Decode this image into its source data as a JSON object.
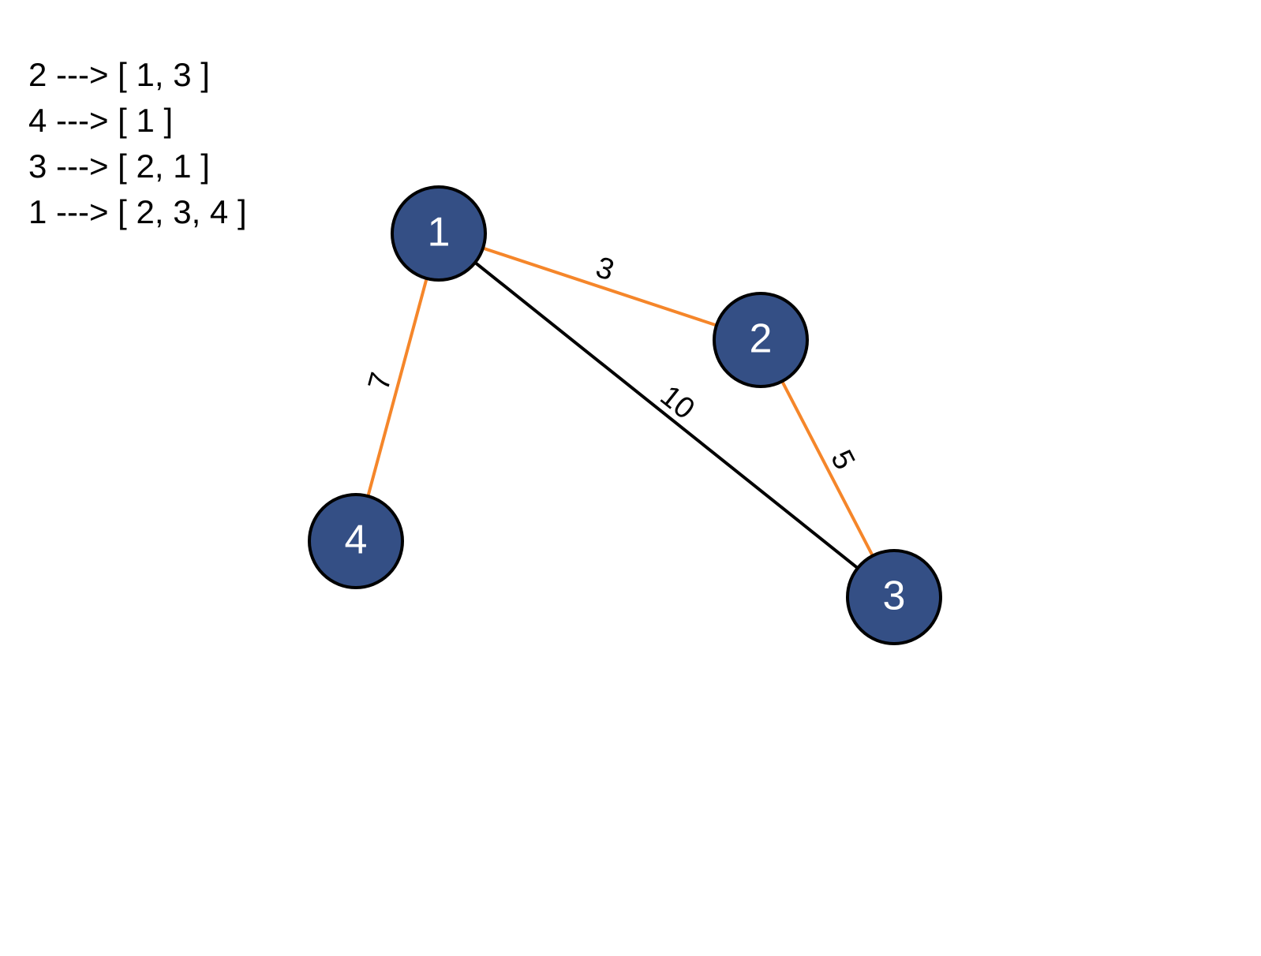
{
  "adjacency_list": [
    {
      "text": "2 ---> [ 1, 3 ]"
    },
    {
      "text": "4 ---> [ 1 ]"
    },
    {
      "text": "3 ---> [ 2, 1 ]"
    },
    {
      "text": "1 ---> [ 2, 3, 4 ]"
    }
  ],
  "colors": {
    "node_fill": "#344F85",
    "node_stroke": "#000000",
    "node_text": "#ffffff",
    "highlighted_edge": "#F5862A",
    "normal_edge": "#000000",
    "weight_text": "#000000"
  },
  "graph": {
    "nodes": [
      {
        "id": "1",
        "label": "1"
      },
      {
        "id": "2",
        "label": "2"
      },
      {
        "id": "3",
        "label": "3"
      },
      {
        "id": "4",
        "label": "4"
      }
    ],
    "edges": [
      {
        "from": "1",
        "to": "2",
        "weight": "3",
        "highlighted": true
      },
      {
        "from": "1",
        "to": "4",
        "weight": "7",
        "highlighted": true
      },
      {
        "from": "1",
        "to": "3",
        "weight": "10",
        "highlighted": false
      },
      {
        "from": "2",
        "to": "3",
        "weight": "5",
        "highlighted": true
      }
    ]
  }
}
